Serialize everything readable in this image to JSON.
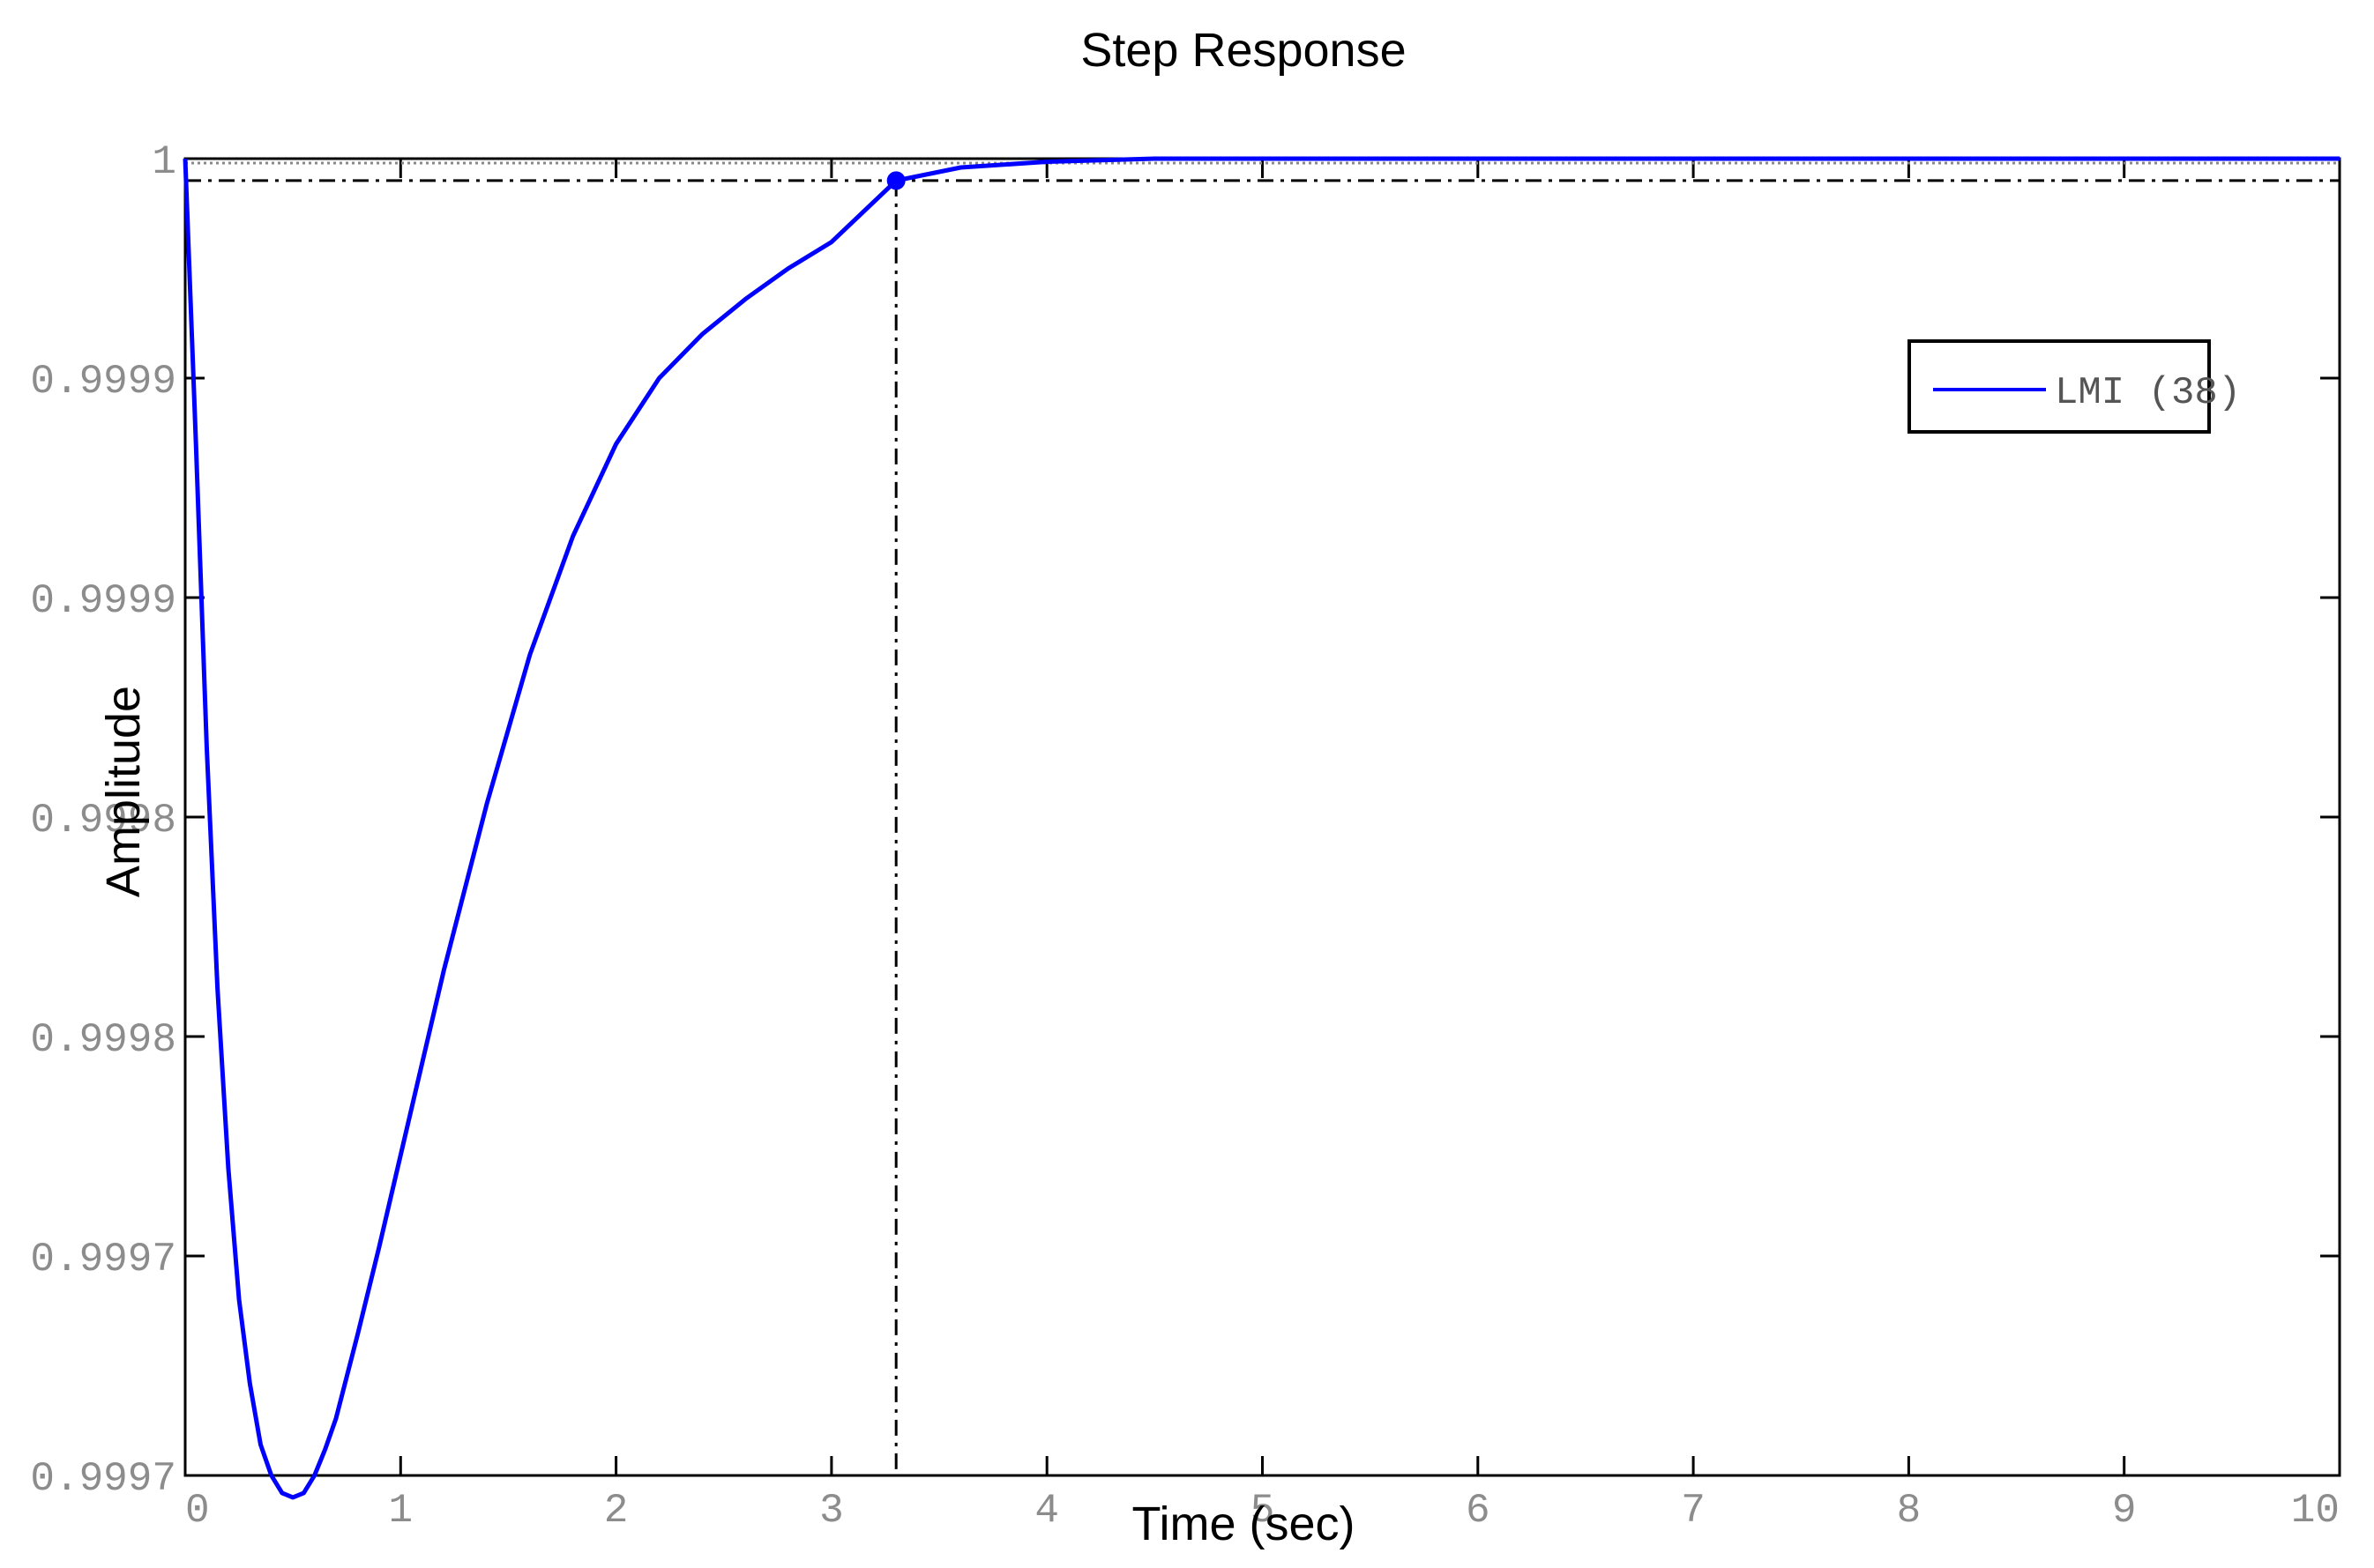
{
  "chart_data": {
    "type": "line",
    "title": "Step Response",
    "xlabel": "Time (sec)",
    "ylabel": "Amplitude",
    "xlim": [
      0,
      10
    ],
    "ylim": [
      0.9997,
      1.0
    ],
    "x_ticks": [
      0,
      1,
      2,
      3,
      4,
      5,
      6,
      7,
      8,
      9,
      10
    ],
    "x_tick_labels": [
      "0",
      "1",
      "2",
      "3",
      "4",
      "5",
      "6",
      "7",
      "8",
      "9",
      "10"
    ],
    "y_ticks": [
      0.9997,
      0.99975,
      0.9998,
      0.99985,
      0.9999,
      0.99995,
      1.0
    ],
    "y_tick_labels": [
      "0.9997",
      "0.9997",
      "0.9998",
      "0.9998",
      "0.9999",
      "0.9999",
      "1"
    ],
    "grid": false,
    "legend_position": "top-right",
    "series": [
      {
        "name": "LMI (38)",
        "color": "#0000ff",
        "x": [
          0,
          0.05,
          0.1,
          0.15,
          0.2,
          0.25,
          0.3,
          0.35,
          0.4,
          0.45,
          0.5,
          0.55,
          0.6,
          0.65,
          0.7,
          0.8,
          0.9,
          1.0,
          1.2,
          1.4,
          1.6,
          1.8,
          2.0,
          2.2,
          2.4,
          2.6,
          2.8,
          3.0,
          3.3,
          3.6,
          4.0,
          4.5,
          5.0,
          6.0,
          7.0,
          8.0,
          9.0,
          10.0
        ],
        "y": [
          1.0,
          0.999935,
          0.999866,
          0.999811,
          0.99977,
          0.99974,
          0.999721,
          0.999707,
          0.9997,
          0.999696,
          0.999695,
          0.999696,
          0.9997,
          0.999706,
          0.999713,
          0.999732,
          0.999752,
          0.999773,
          0.999815,
          0.999853,
          0.999887,
          0.999914,
          0.999935,
          0.99995,
          0.99996,
          0.999968,
          0.999975,
          0.999981,
          0.999995,
          0.999998,
          0.9999993,
          1.0,
          1.0,
          1.0,
          1.0,
          1.0,
          1.0,
          1.0
        ]
      }
    ],
    "reference_lines": {
      "marker_point": {
        "x": 3.3,
        "y": 0.999995
      },
      "color": "#000000"
    }
  }
}
